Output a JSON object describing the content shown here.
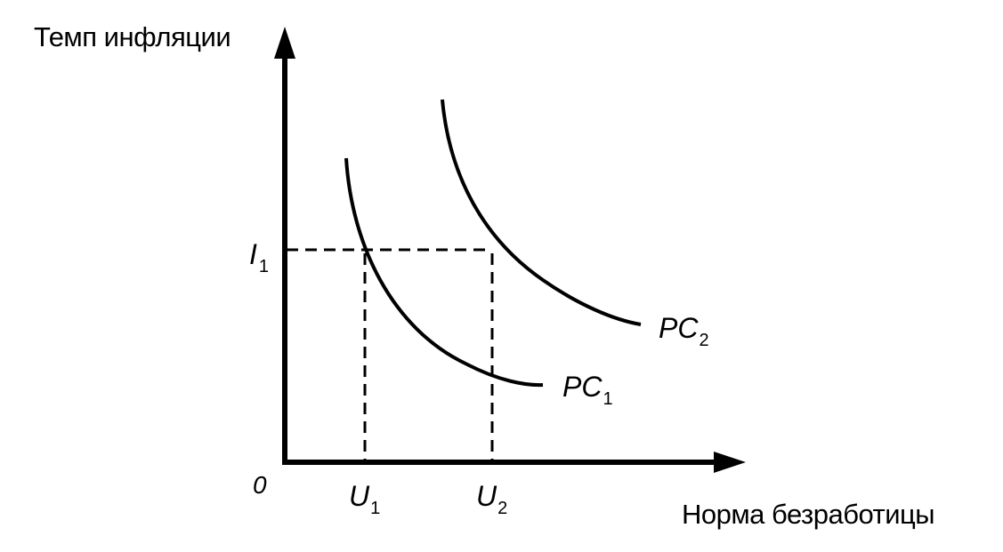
{
  "y_axis_title": "Темп инфляции",
  "x_axis_title": "Норма безработицы",
  "origin_label": "0",
  "i1": {
    "main": "I",
    "sub": "1"
  },
  "u1": {
    "main": "U",
    "sub": "1"
  },
  "u2": {
    "main": "U",
    "sub": "2"
  },
  "pc1": {
    "main": "PC",
    "sub": "1"
  },
  "pc2": {
    "main": "PC",
    "sub": "2"
  },
  "colors": {
    "ink": "#000000",
    "background": "#ffffff"
  }
}
